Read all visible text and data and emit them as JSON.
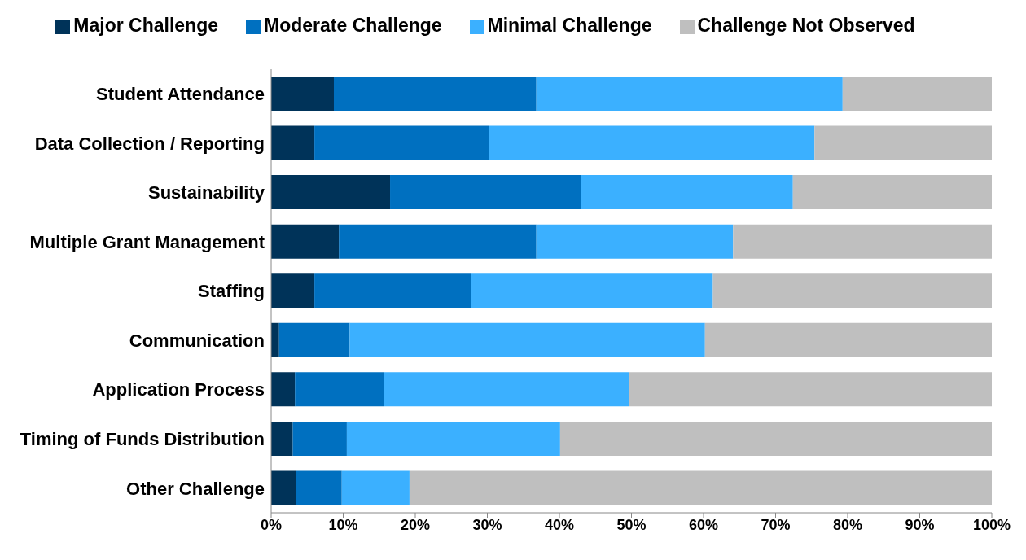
{
  "chart_data": {
    "type": "bar",
    "orientation": "horizontal",
    "stacked": true,
    "legend": "top",
    "grid": false,
    "categories": [
      "Student Attendance",
      "Data Collection / Reporting",
      "Sustainability",
      "Multiple Grant Management",
      "Staffing",
      "Communication",
      "Application Process",
      "Timing of Funds Distribution",
      "Other Challenge"
    ],
    "series": [
      {
        "name": "Major Challenge",
        "color": "#003359",
        "values": [
          8.7,
          6.0,
          16.5,
          9.4,
          6.0,
          1.1,
          3.3,
          3.0,
          3.5
        ]
      },
      {
        "name": "Moderate Challenge",
        "color": "#0070c0",
        "values": [
          28.1,
          24.2,
          26.5,
          27.4,
          21.7,
          9.8,
          12.4,
          7.5,
          6.3
        ]
      },
      {
        "name": "Minimal Challenge",
        "color": "#3bb0ff",
        "values": [
          42.5,
          45.2,
          29.4,
          27.3,
          33.6,
          49.3,
          34.0,
          29.6,
          9.4
        ]
      },
      {
        "name": "Challenge Not Observed",
        "color": "#bfbfbf",
        "values": [
          20.7,
          24.6,
          27.6,
          35.9,
          38.7,
          39.8,
          50.3,
          59.9,
          80.8
        ]
      }
    ],
    "xlim": [
      0,
      100
    ],
    "xticks": [
      {
        "value": 0,
        "label": "0%"
      },
      {
        "value": 10,
        "label": "10%"
      },
      {
        "value": 20,
        "label": "20%"
      },
      {
        "value": 30,
        "label": "30%"
      },
      {
        "value": 40,
        "label": "40%"
      },
      {
        "value": 50,
        "label": "50%"
      },
      {
        "value": 60,
        "label": "60%"
      },
      {
        "value": 70,
        "label": "70%"
      },
      {
        "value": 80,
        "label": "80%"
      },
      {
        "value": 90,
        "label": "90%"
      },
      {
        "value": 100,
        "label": "100%"
      }
    ]
  }
}
